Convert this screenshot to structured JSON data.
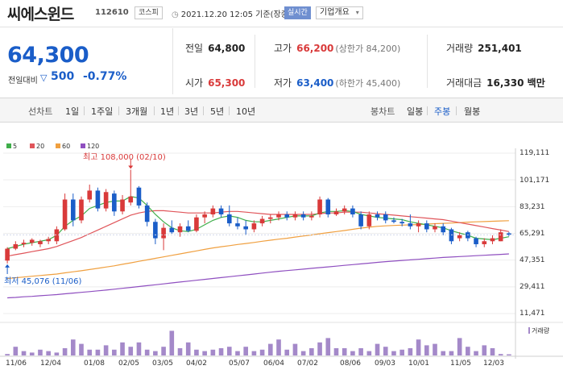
{
  "header": {
    "name": "씨에스윈드",
    "code": "112610",
    "market": "코스피",
    "datetime": "2021.12.20 12:05 기준(장중)",
    "realtime": "실시간",
    "company_info": "기업개요"
  },
  "price": {
    "current": "64,300",
    "change_label": "전일대비",
    "change_value": "500",
    "change_pct": "-0.77%"
  },
  "stats": {
    "prev_close_label": "전일",
    "prev_close": "64,800",
    "high_label": "고가",
    "high": "66,200",
    "upper_limit": "(상한가 84,200)",
    "volume_label": "거래량",
    "volume": "251,401",
    "open_label": "시가",
    "open": "65,300",
    "low_label": "저가",
    "low": "63,400",
    "lower_limit": "(하한가 45,400)",
    "amount_label": "거래대금",
    "amount": "16,330 백만"
  },
  "tabs": {
    "line_label": "선차트",
    "line_tabs": [
      "1일",
      "1주일",
      "3개월",
      "1년",
      "3년",
      "5년",
      "10년"
    ],
    "candle_label": "봉차트",
    "candle_tabs": [
      "일봉",
      "주봉",
      "월봉"
    ],
    "active_candle": "주봉"
  },
  "colors": {
    "up": "#d93a3a",
    "down": "#1a5dc8",
    "ma5": "#3fae4a",
    "ma20": "#e0555a",
    "ma60": "#f0a040",
    "ma120": "#8f4fc0",
    "volume": "#a489c9"
  },
  "chart_data": {
    "type": "candlestick",
    "period": "weekly",
    "legend": [
      "5",
      "20",
      "60",
      "120"
    ],
    "y_ticks": [
      "119,111",
      "101,171",
      "83,231",
      "65,291",
      "47,351",
      "29,411",
      "11,471"
    ],
    "y_tick_values": [
      119111,
      101171,
      83231,
      65291,
      47351,
      29411,
      11471
    ],
    "x_ticks": [
      "11/06",
      "12/04",
      "01/08",
      "02/05",
      "03/05",
      "04/02",
      "05/07",
      "06/04",
      "07/02",
      "08/06",
      "09/03",
      "10/01",
      "11/05",
      "12/03"
    ],
    "high_annotation": "최고 108,000 (02/10)",
    "low_annotation": "최저 45,076 (11/06)",
    "volume_label": "거래량",
    "candles": [
      {
        "o": 47000,
        "h": 56000,
        "l": 45076,
        "c": 55000
      },
      {
        "o": 55000,
        "h": 60000,
        "l": 54000,
        "c": 58000
      },
      {
        "o": 58000,
        "h": 61000,
        "l": 56000,
        "c": 59000
      },
      {
        "o": 59000,
        "h": 62000,
        "l": 57000,
        "c": 61000
      },
      {
        "o": 58000,
        "h": 61000,
        "l": 56000,
        "c": 60000
      },
      {
        "o": 60000,
        "h": 63000,
        "l": 58000,
        "c": 61500
      },
      {
        "o": 60000,
        "h": 70000,
        "l": 58000,
        "c": 68000
      },
      {
        "o": 68000,
        "h": 92000,
        "l": 67000,
        "c": 88000
      },
      {
        "o": 88000,
        "h": 92000,
        "l": 70000,
        "c": 74000
      },
      {
        "o": 74000,
        "h": 90000,
        "l": 72000,
        "c": 88000
      },
      {
        "o": 88000,
        "h": 98000,
        "l": 86000,
        "c": 94000
      },
      {
        "o": 94000,
        "h": 96000,
        "l": 80000,
        "c": 82000
      },
      {
        "o": 82000,
        "h": 95000,
        "l": 80000,
        "c": 93000
      },
      {
        "o": 92000,
        "h": 94000,
        "l": 77000,
        "c": 80000
      },
      {
        "o": 80000,
        "h": 91000,
        "l": 78000,
        "c": 88000
      },
      {
        "o": 86000,
        "h": 108000,
        "l": 84000,
        "c": 90000
      },
      {
        "o": 96000,
        "h": 97000,
        "l": 82000,
        "c": 84000
      },
      {
        "o": 84000,
        "h": 86000,
        "l": 70000,
        "c": 73000
      },
      {
        "o": 73000,
        "h": 75000,
        "l": 58000,
        "c": 62000
      },
      {
        "o": 62000,
        "h": 72000,
        "l": 54000,
        "c": 69000
      },
      {
        "o": 69000,
        "h": 74000,
        "l": 65000,
        "c": 66000
      },
      {
        "o": 66000,
        "h": 72000,
        "l": 63000,
        "c": 70000
      },
      {
        "o": 70000,
        "h": 74000,
        "l": 66000,
        "c": 67000
      },
      {
        "o": 67000,
        "h": 78000,
        "l": 66000,
        "c": 76000
      },
      {
        "o": 76000,
        "h": 80000,
        "l": 72000,
        "c": 78000
      },
      {
        "o": 78000,
        "h": 84000,
        "l": 76000,
        "c": 82000
      },
      {
        "o": 82000,
        "h": 84000,
        "l": 76000,
        "c": 78000
      },
      {
        "o": 78000,
        "h": 84000,
        "l": 70000,
        "c": 72000
      },
      {
        "o": 72000,
        "h": 76000,
        "l": 68000,
        "c": 70000
      },
      {
        "o": 70000,
        "h": 74000,
        "l": 64000,
        "c": 68000
      },
      {
        "o": 68000,
        "h": 74000,
        "l": 66000,
        "c": 72000
      },
      {
        "o": 72000,
        "h": 77000,
        "l": 70000,
        "c": 75000
      },
      {
        "o": 75000,
        "h": 78000,
        "l": 72000,
        "c": 76000
      },
      {
        "o": 76000,
        "h": 80000,
        "l": 74000,
        "c": 78000
      },
      {
        "o": 78000,
        "h": 80000,
        "l": 74000,
        "c": 76000
      },
      {
        "o": 76000,
        "h": 80000,
        "l": 74000,
        "c": 78000
      },
      {
        "o": 78000,
        "h": 80000,
        "l": 74000,
        "c": 76000
      },
      {
        "o": 76000,
        "h": 80000,
        "l": 74000,
        "c": 77000
      },
      {
        "o": 78000,
        "h": 90000,
        "l": 76000,
        "c": 88000
      },
      {
        "o": 88000,
        "h": 89000,
        "l": 76000,
        "c": 78000
      },
      {
        "o": 78000,
        "h": 82000,
        "l": 77000,
        "c": 80000
      },
      {
        "o": 80000,
        "h": 84000,
        "l": 78000,
        "c": 82000
      },
      {
        "o": 82000,
        "h": 84000,
        "l": 76000,
        "c": 78000
      },
      {
        "o": 78000,
        "h": 80000,
        "l": 68000,
        "c": 70000
      },
      {
        "o": 70000,
        "h": 80000,
        "l": 68000,
        "c": 78000
      },
      {
        "o": 78000,
        "h": 80000,
        "l": 74000,
        "c": 76000
      },
      {
        "o": 78000,
        "h": 80000,
        "l": 72000,
        "c": 74000
      },
      {
        "o": 74000,
        "h": 76000,
        "l": 72000,
        "c": 73000
      },
      {
        "o": 73000,
        "h": 75000,
        "l": 70000,
        "c": 72000
      },
      {
        "o": 72000,
        "h": 78000,
        "l": 68000,
        "c": 70000
      },
      {
        "o": 70000,
        "h": 74000,
        "l": 66000,
        "c": 72000
      },
      {
        "o": 72000,
        "h": 74000,
        "l": 66000,
        "c": 68000
      },
      {
        "o": 68000,
        "h": 72000,
        "l": 66000,
        "c": 70000
      },
      {
        "o": 70000,
        "h": 72000,
        "l": 64000,
        "c": 66000
      },
      {
        "o": 68000,
        "h": 69000,
        "l": 58000,
        "c": 60000
      },
      {
        "o": 62000,
        "h": 66000,
        "l": 60000,
        "c": 64000
      },
      {
        "o": 66000,
        "h": 67000,
        "l": 60000,
        "c": 62000
      },
      {
        "o": 62000,
        "h": 63000,
        "l": 56000,
        "c": 58000
      },
      {
        "o": 58000,
        "h": 62000,
        "l": 56000,
        "c": 60000
      },
      {
        "o": 60000,
        "h": 64000,
        "l": 58000,
        "c": 62000
      },
      {
        "o": 60000,
        "h": 68000,
        "l": 60000,
        "c": 66000
      },
      {
        "o": 65300,
        "h": 66200,
        "l": 63400,
        "c": 64300
      }
    ],
    "volume_bars": [
      0.05,
      0.3,
      0.15,
      0.1,
      0.2,
      0.15,
      0.1,
      0.25,
      0.55,
      0.4,
      0.2,
      0.2,
      0.35,
      0.2,
      0.45,
      0.3,
      0.45,
      0.2,
      0.15,
      0.3,
      0.85,
      0.25,
      0.45,
      0.2,
      0.15,
      0.2,
      0.25,
      0.3,
      0.15,
      0.3,
      0.15,
      0.2,
      0.4,
      0.55,
      0.2,
      0.4,
      0.15,
      0.25,
      0.45,
      0.6,
      0.25,
      0.25,
      0.15,
      0.25,
      0.15,
      0.4,
      0.3,
      0.15,
      0.2,
      0.25,
      0.55,
      0.35,
      0.4,
      0.15,
      0.15,
      0.6,
      0.3,
      0.15,
      0.35,
      0.25,
      0.05,
      0.04
    ],
    "ma5": [
      55000,
      56500,
      58000,
      59000,
      60000,
      61000,
      64000,
      70000,
      74000,
      77000,
      82000,
      84000,
      86000,
      87000,
      87000,
      90000,
      89000,
      84000,
      78000,
      73000,
      69000,
      67000,
      66500,
      68000,
      71000,
      74000,
      76000,
      77000,
      76000,
      74000,
      73000,
      73000,
      74000,
      75000,
      76000,
      77000,
      77000,
      77000,
      79000,
      80000,
      80000,
      80500,
      80000,
      78000,
      77000,
      76000,
      75500,
      75000,
      74500,
      73000,
      72000,
      71000,
      70000,
      69000,
      67000,
      65500,
      64000,
      62000,
      61500,
      61000,
      62000,
      63000
    ],
    "ma20": [
      50000,
      51000,
      52000,
      53000,
      54000,
      55000,
      56500,
      58500,
      60500,
      62500,
      65000,
      67500,
      70000,
      72500,
      75000,
      77500,
      79000,
      80000,
      80500,
      80500,
      80000,
      79500,
      79000,
      79000,
      79000,
      79000,
      79500,
      80000,
      80000,
      79500,
      79000,
      78500,
      78000,
      78000,
      78000,
      78000,
      78000,
      78000,
      78500,
      79000,
      79000,
      79500,
      79500,
      79500,
      79000,
      78500,
      78000,
      77500,
      77000,
      76500,
      76000,
      75500,
      75000,
      74500,
      73500,
      72500,
      71500,
      70500,
      69500,
      68500,
      67500,
      66500
    ],
    "ma60": [
      35000,
      35500,
      36000,
      36500,
      37000,
      37500,
      38000,
      38800,
      39500,
      40200,
      41000,
      41800,
      42700,
      43500,
      44500,
      45500,
      46500,
      47500,
      48500,
      49500,
      50500,
      51500,
      52500,
      53500,
      54500,
      55500,
      56300,
      57000,
      57800,
      58500,
      59200,
      60000,
      60700,
      61400,
      62000,
      62800,
      63500,
      64200,
      65000,
      65800,
      66500,
      67200,
      68000,
      68800,
      69400,
      70000,
      70300,
      70600,
      70800,
      71000,
      71200,
      71500,
      71800,
      72000,
      72200,
      72500,
      72800,
      73000,
      73200,
      73400,
      73600,
      73800
    ],
    "ma120": [
      22000,
      22300,
      22700,
      23000,
      23400,
      23800,
      24200,
      24700,
      25200,
      25700,
      26200,
      26700,
      27200,
      27800,
      28400,
      29000,
      29600,
      30200,
      30800,
      31400,
      32000,
      32600,
      33200,
      33800,
      34400,
      35000,
      35600,
      36200,
      36800,
      37400,
      38000,
      38600,
      39200,
      39800,
      40300,
      40800,
      41300,
      41800,
      42300,
      42800,
      43300,
      43800,
      44300,
      44800,
      45300,
      45800,
      46300,
      46700,
      47100,
      47500,
      47900,
      48300,
      48700,
      49100,
      49400,
      49700,
      50000,
      50300,
      50600,
      50900,
      51200,
      51500
    ]
  }
}
